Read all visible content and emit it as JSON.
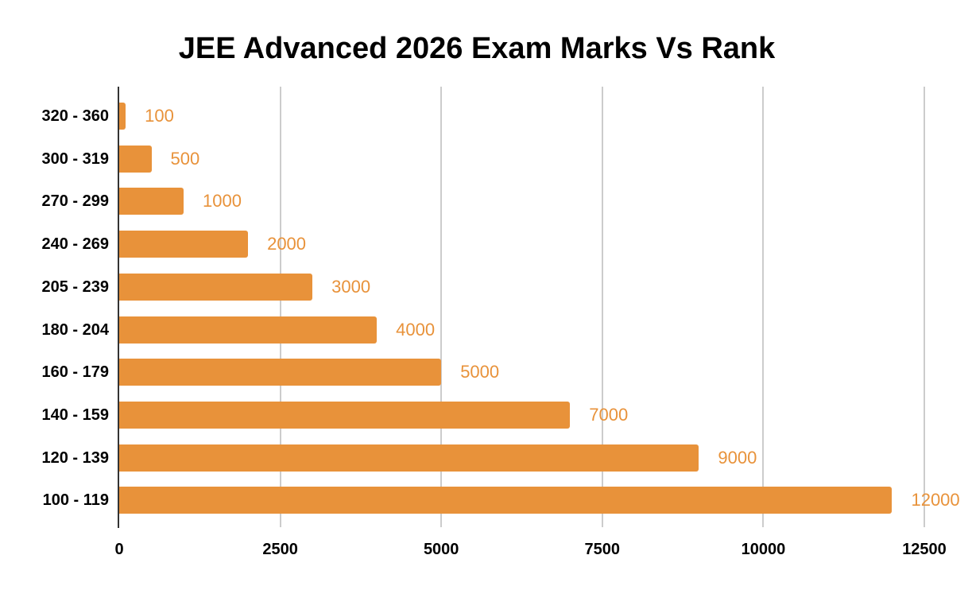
{
  "chart_data": {
    "type": "bar",
    "orientation": "horizontal",
    "title": "JEE Advanced 2026 Exam Marks Vs Rank",
    "xlabel": "",
    "ylabel": "",
    "categories": [
      "320 - 360",
      "300 - 319",
      "270 - 299",
      "240 - 269",
      "205 - 239",
      "180 - 204",
      "160 - 179",
      "140 - 159",
      "120 - 139",
      "100 - 119"
    ],
    "values": [
      100,
      500,
      1000,
      2000,
      3000,
      4000,
      5000,
      7000,
      9000,
      12000
    ],
    "value_labels": [
      "100",
      "500",
      "1000",
      "2000",
      "3000",
      "4000",
      "5000",
      "7000",
      "9000",
      "12000"
    ],
    "xlim": [
      0,
      12500
    ],
    "x_ticks": [
      "0",
      "2500",
      "5000",
      "7500",
      "10000",
      "12500"
    ],
    "x_tick_values": [
      0,
      2500,
      5000,
      7500,
      10000,
      12500
    ],
    "grid": "vertical",
    "legend": "none",
    "data_labels": true
  },
  "colors": {
    "bar": "#E8923A",
    "value_label": "#E8923A",
    "gridline": "#CCCCCC",
    "axis": "#333333",
    "text": "#000000"
  }
}
